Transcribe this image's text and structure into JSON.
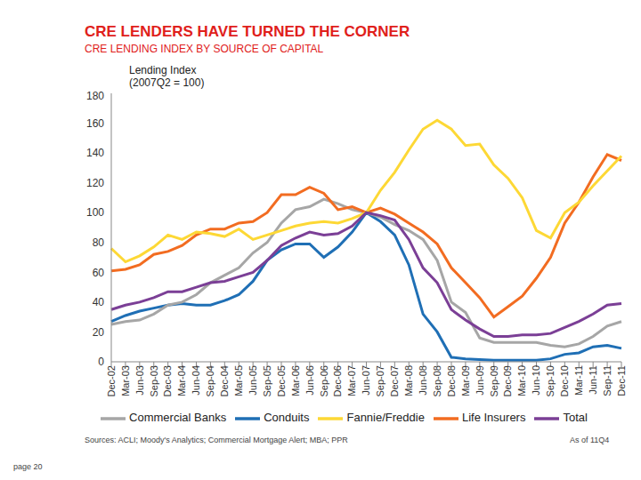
{
  "chart_data": {
    "type": "line",
    "title": "CRE LENDERS HAVE TURNED THE CORNER",
    "subtitle": "CRE LENDING INDEX BY SOURCE OF CAPITAL",
    "y_label": [
      "Lending Index",
      "(2007Q2 = 100)"
    ],
    "source": "Sources: ACLI; Moody's Analytics; Commercial Mortgage Alert; MBA; PPR",
    "note": "As of 11Q4",
    "page": "page 20",
    "categories": [
      "Dec-02",
      "Mar-03",
      "Jun-03",
      "Sep-03",
      "Dec-03",
      "Mar-04",
      "Jun-04",
      "Sep-04",
      "Dec-04",
      "Mar-05",
      "Jun-05",
      "Sep-05",
      "Dec-05",
      "Mar-06",
      "Jun-06",
      "Sep-06",
      "Dec-06",
      "Mar-07",
      "Jun-07",
      "Sep-07",
      "Dec-07",
      "Mar-08",
      "Jun-08",
      "Sep-08",
      "Dec-08",
      "Mar-09",
      "Jun-09",
      "Sep-09",
      "Dec-09",
      "Mar-10",
      "Jun-10",
      "Sep-10",
      "Dec-10",
      "Mar-11",
      "Jun-11",
      "Sep-11",
      "Dec-11"
    ],
    "series": [
      {
        "name": "Conduits",
        "color": "#1f6fb5",
        "values": [
          27,
          31,
          34,
          36,
          38,
          39,
          38,
          38,
          41,
          45,
          54,
          68,
          75,
          79,
          79,
          70,
          77,
          87,
          100,
          94,
          85,
          65,
          32,
          20,
          3,
          2,
          1.5,
          1,
          1,
          1,
          1,
          2,
          5,
          6,
          10,
          11,
          9
        ]
      },
      {
        "name": "Commercial Banks",
        "color": "#a6a6a6",
        "values": [
          25,
          27,
          28,
          32,
          38,
          40,
          45,
          53,
          58,
          63,
          73,
          80,
          93,
          102,
          104,
          109,
          106,
          102,
          100,
          97,
          92,
          88,
          82,
          68,
          40,
          33,
          16,
          13,
          13,
          13,
          13,
          11,
          10,
          12,
          17,
          24,
          27
        ]
      },
      {
        "name": "Life Insurers",
        "color": "#f26c21",
        "values": [
          61,
          62,
          65,
          72,
          74,
          78,
          85,
          89,
          89,
          93,
          94,
          100,
          112,
          112,
          117,
          113,
          102,
          104,
          100,
          103,
          99,
          93,
          87,
          79,
          63,
          53,
          43,
          30,
          37,
          44,
          56,
          70,
          93,
          107,
          124,
          139,
          135
        ]
      },
      {
        "name": "Fannie/Freddie",
        "color": "#fdd835",
        "values": [
          76,
          67,
          71,
          77,
          85,
          82,
          87,
          86,
          84,
          89,
          82,
          85,
          88,
          91,
          93,
          94,
          93,
          96,
          100,
          115,
          127,
          142,
          156,
          162,
          156,
          145,
          146,
          132,
          123,
          110,
          88,
          83,
          100,
          107,
          118,
          128,
          138
        ]
      },
      {
        "name": "Total",
        "color": "#7b3f96",
        "values": [
          35,
          38,
          40,
          43,
          47,
          47,
          50,
          53,
          54,
          57,
          60,
          68,
          78,
          83,
          87,
          85,
          86,
          91,
          100,
          98,
          95,
          82,
          63,
          53,
          35,
          28,
          22,
          17,
          17,
          18,
          18,
          19,
          23,
          27,
          32,
          38,
          39
        ]
      }
    ],
    "ylim": [
      0,
      180
    ],
    "yticks": [
      0,
      20,
      40,
      60,
      80,
      100,
      120,
      140,
      160,
      180
    ],
    "grid": false,
    "legend": "bottom"
  }
}
